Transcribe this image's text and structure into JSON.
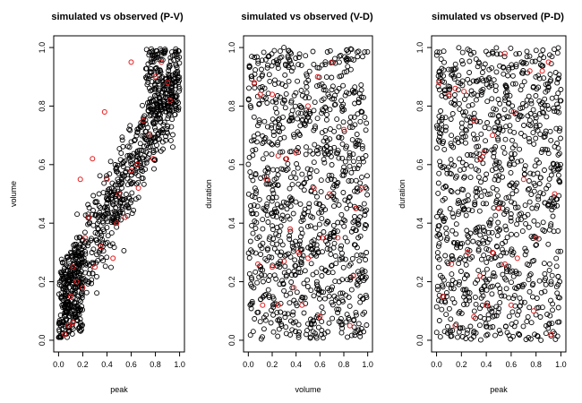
{
  "chart_data": [
    {
      "type": "scatter",
      "title": "simulated vs observed (P-V)",
      "xlabel": "peak",
      "ylabel": "volume",
      "xlim": [
        0,
        1
      ],
      "ylim": [
        0,
        1
      ],
      "xticks": [
        "0.0",
        "0.2",
        "0.4",
        "0.6",
        "0.8",
        "1.0"
      ],
      "yticks": [
        "0.0",
        "0.2",
        "0.4",
        "0.6",
        "0.8",
        "1.0"
      ],
      "series": [
        {
          "name": "simulated",
          "color": "#000000",
          "marker": "open-circle",
          "n": 1000,
          "pattern": "positively correlated, dense near (0.05,0.1) and (0.85,0.95)"
        },
        {
          "name": "observed",
          "color": "#e41a1c",
          "marker": "open-circle",
          "points": [
            [
              0.05,
              0.02
            ],
            [
              0.08,
              0.05
            ],
            [
              0.12,
              0.06
            ],
            [
              0.1,
              0.15
            ],
            [
              0.15,
              0.2
            ],
            [
              0.2,
              0.18
            ],
            [
              0.22,
              0.35
            ],
            [
              0.3,
              0.25
            ],
            [
              0.35,
              0.32
            ],
            [
              0.4,
              0.55
            ],
            [
              0.45,
              0.28
            ],
            [
              0.5,
              0.5
            ],
            [
              0.55,
              0.42
            ],
            [
              0.6,
              0.58
            ],
            [
              0.65,
              0.6
            ],
            [
              0.7,
              0.75
            ],
            [
              0.75,
              0.7
            ],
            [
              0.8,
              0.9
            ],
            [
              0.85,
              0.95
            ],
            [
              0.9,
              0.88
            ],
            [
              0.92,
              0.82
            ],
            [
              0.25,
              0.42
            ],
            [
              0.18,
              0.55
            ],
            [
              0.6,
              0.95
            ],
            [
              0.78,
              0.62
            ],
            [
              0.38,
              0.78
            ],
            [
              0.48,
              0.4
            ],
            [
              0.66,
              0.52
            ],
            [
              0.12,
              0.25
            ],
            [
              0.28,
              0.62
            ]
          ]
        }
      ]
    },
    {
      "type": "scatter",
      "title": "simulated vs observed (V-D)",
      "xlabel": "volume",
      "ylabel": "duration",
      "xlim": [
        0,
        1
      ],
      "ylim": [
        0,
        1
      ],
      "xticks": [
        "0.0",
        "0.2",
        "0.4",
        "0.6",
        "0.8",
        "1.0"
      ],
      "yticks": [
        "0.0",
        "0.2",
        "0.4",
        "0.6",
        "0.8",
        "1.0"
      ],
      "series": [
        {
          "name": "simulated",
          "color": "#000000",
          "marker": "open-circle",
          "n": 1000,
          "pattern": "uniform, no correlation"
        },
        {
          "name": "observed",
          "color": "#e41a1c",
          "marker": "open-circle",
          "points": [
            [
              0.05,
              0.88
            ],
            [
              0.1,
              0.84
            ],
            [
              0.2,
              0.84
            ],
            [
              0.25,
              0.63
            ],
            [
              0.32,
              0.62
            ],
            [
              0.4,
              0.64
            ],
            [
              0.5,
              0.8
            ],
            [
              0.58,
              0.9
            ],
            [
              0.7,
              0.95
            ],
            [
              0.8,
              0.72
            ],
            [
              0.95,
              0.52
            ],
            [
              0.9,
              0.45
            ],
            [
              0.75,
              0.35
            ],
            [
              0.62,
              0.35
            ],
            [
              0.5,
              0.28
            ],
            [
              0.42,
              0.3
            ],
            [
              0.35,
              0.38
            ],
            [
              0.3,
              0.27
            ],
            [
              0.2,
              0.25
            ],
            [
              0.08,
              0.26
            ],
            [
              0.12,
              0.12
            ],
            [
              0.25,
              0.12
            ],
            [
              0.45,
              0.12
            ],
            [
              0.6,
              0.08
            ],
            [
              0.85,
              0.05
            ],
            [
              0.55,
              0.52
            ],
            [
              0.15,
              0.55
            ],
            [
              0.68,
              0.5
            ],
            [
              0.38,
              0.18
            ],
            [
              0.88,
              0.22
            ]
          ]
        }
      ]
    },
    {
      "type": "scatter",
      "title": "simulated vs observed (P-D)",
      "xlabel": "peak",
      "ylabel": "duration",
      "xlim": [
        0,
        1
      ],
      "ylim": [
        0,
        1
      ],
      "xticks": [
        "0.0",
        "0.2",
        "0.4",
        "0.6",
        "0.8",
        "1.0"
      ],
      "yticks": [
        "0.0",
        "0.2",
        "0.4",
        "0.6",
        "0.8",
        "1.0"
      ],
      "series": [
        {
          "name": "simulated",
          "color": "#000000",
          "marker": "open-circle",
          "n": 1000,
          "pattern": "uniform, no correlation"
        },
        {
          "name": "observed",
          "color": "#e41a1c",
          "marker": "open-circle",
          "points": [
            [
              0.02,
              0.88
            ],
            [
              0.1,
              0.84
            ],
            [
              0.15,
              0.86
            ],
            [
              0.22,
              0.85
            ],
            [
              0.3,
              0.75
            ],
            [
              0.35,
              0.62
            ],
            [
              0.38,
              0.64
            ],
            [
              0.45,
              0.7
            ],
            [
              0.55,
              0.98
            ],
            [
              0.62,
              0.78
            ],
            [
              0.7,
              0.55
            ],
            [
              0.75,
              0.92
            ],
            [
              0.85,
              0.92
            ],
            [
              0.9,
              0.95
            ],
            [
              0.95,
              0.5
            ],
            [
              0.8,
              0.35
            ],
            [
              0.65,
              0.28
            ],
            [
              0.55,
              0.26
            ],
            [
              0.45,
              0.3
            ],
            [
              0.35,
              0.22
            ],
            [
              0.25,
              0.3
            ],
            [
              0.12,
              0.26
            ],
            [
              0.05,
              0.15
            ],
            [
              0.15,
              0.05
            ],
            [
              0.3,
              0.08
            ],
            [
              0.4,
              0.12
            ],
            [
              0.6,
              0.12
            ],
            [
              0.78,
              0.1
            ],
            [
              0.92,
              0.02
            ],
            [
              0.5,
              0.45
            ]
          ]
        }
      ]
    }
  ]
}
